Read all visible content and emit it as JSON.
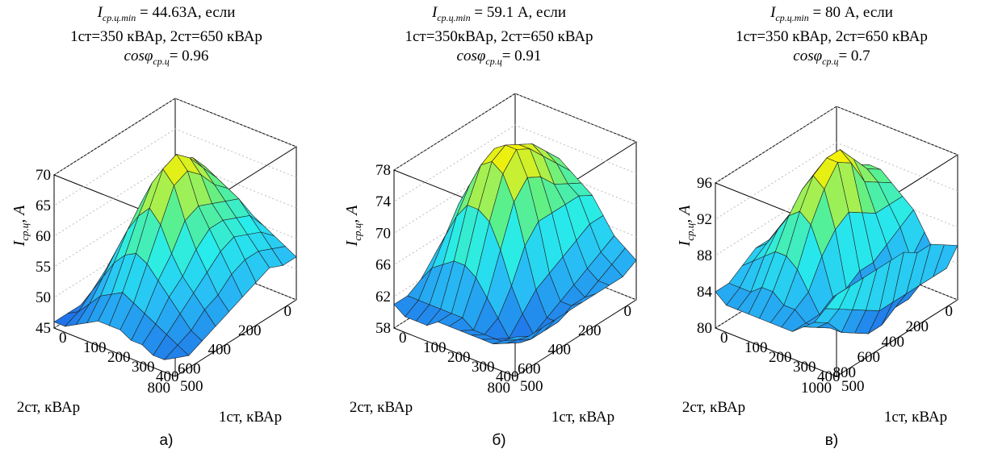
{
  "chart_data": [
    {
      "type": "surface",
      "title_lines": [
        {
          "var": "I",
          "sub": "ср.ц.min",
          "rest": " = 44.63А, если"
        },
        {
          "text": "1ст=350 кВАр, 2ст=650 кВАр"
        },
        {
          "var": "cosφ",
          "sub": "ср.ц",
          "rest": "= 0.96"
        }
      ],
      "zlabel": {
        "var": "I",
        "sub": "ср.ц",
        "rest": ", А"
      },
      "xlabel": "2ст, кВАр",
      "ylabel": "1ст, кВАр",
      "x_ticks": [
        "0",
        "200",
        "400",
        "600",
        "800"
      ],
      "y_ticks": [
        "0",
        "100",
        "200",
        "300",
        "400",
        "500"
      ],
      "z_ticks": [
        "45",
        "50",
        "55",
        "60",
        "65",
        "70"
      ],
      "xlim": [
        0,
        800
      ],
      "ylim": [
        0,
        500
      ],
      "zlim": [
        45,
        70
      ],
      "grid": true,
      "colormap": "winter-to-yellow",
      "panel_label": "а)",
      "z_values": [
        [
          52,
          54,
          56,
          57,
          58,
          58,
          57,
          56,
          55,
          54,
          53,
          52
        ],
        [
          51,
          55,
          59,
          62,
          63,
          62,
          61,
          60,
          58,
          56,
          54,
          52
        ],
        [
          50,
          55,
          60,
          64,
          66,
          65,
          63,
          61,
          59,
          57,
          55,
          53
        ],
        [
          49,
          54,
          60,
          64,
          67,
          68,
          66,
          62,
          60,
          58,
          55,
          52
        ],
        [
          48,
          53,
          59,
          64,
          67,
          70,
          68,
          63,
          60,
          57,
          54,
          51
        ],
        [
          47,
          52,
          57,
          62,
          66,
          69,
          67,
          62,
          58,
          55,
          52,
          50
        ],
        [
          47,
          51,
          55,
          59,
          62,
          64,
          62,
          58,
          55,
          53,
          51,
          49
        ],
        [
          46,
          49,
          52,
          55,
          57,
          58,
          57,
          55,
          53,
          51,
          49,
          48
        ],
        [
          46,
          47,
          49,
          51,
          52,
          53,
          52,
          51,
          50,
          49,
          48,
          47
        ],
        [
          46,
          46,
          47,
          48,
          49,
          49,
          49,
          48,
          48,
          47,
          47,
          48
        ]
      ]
    },
    {
      "type": "surface",
      "title_lines": [
        {
          "var": "I",
          "sub": "ср.ц.min",
          "rest": " = 59.1 А, если"
        },
        {
          "text": "1ст=350кВАр, 2ст=650 кВАр"
        },
        {
          "var": "cosφ",
          "sub": "ср.ц",
          "rest": "= 0.91"
        }
      ],
      "zlabel": {
        "var": "I",
        "sub": "ср.ц",
        "rest": ", А"
      },
      "xlabel": "2ст, кВАр",
      "ylabel": "1ст, кВАр",
      "x_ticks": [
        "0",
        "200",
        "400",
        "600",
        "800"
      ],
      "y_ticks": [
        "0",
        "100",
        "200",
        "300",
        "400",
        "500"
      ],
      "z_ticks": [
        "58",
        "62",
        "66",
        "70",
        "74",
        "78"
      ],
      "xlim": [
        0,
        800
      ],
      "ylim": [
        0,
        500
      ],
      "zlim": [
        58,
        78
      ],
      "grid": true,
      "colormap": "winter-to-yellow",
      "panel_label": "б)",
      "z_values": [
        [
          63,
          66,
          69,
          71,
          72,
          71,
          70,
          69,
          67,
          65,
          64,
          63
        ],
        [
          63,
          67,
          71,
          73,
          74,
          73,
          71,
          70,
          67,
          64,
          63,
          62
        ],
        [
          64,
          68,
          72,
          75,
          76,
          75,
          72,
          70,
          66,
          63,
          62,
          62
        ],
        [
          65,
          69,
          73,
          76,
          77,
          77,
          74,
          70,
          65,
          62,
          61,
          62
        ],
        [
          66,
          70,
          74,
          77,
          78,
          78,
          75,
          70,
          64,
          61,
          61,
          62
        ],
        [
          66,
          70,
          73,
          76,
          77,
          76,
          73,
          68,
          63,
          60,
          60,
          62
        ],
        [
          64,
          67,
          70,
          72,
          72,
          71,
          68,
          64,
          61,
          59,
          60,
          62
        ],
        [
          62,
          64,
          65,
          66,
          66,
          65,
          63,
          61,
          59,
          59,
          60,
          62
        ],
        [
          61,
          61,
          61,
          61,
          61,
          61,
          60,
          60,
          60,
          60,
          61,
          62
        ],
        [
          61,
          60,
          60,
          60,
          61,
          61,
          61,
          61,
          61,
          61,
          62,
          63
        ]
      ]
    },
    {
      "type": "surface",
      "title_lines": [
        {
          "var": "I",
          "sub": "ср.ц.min",
          "rest": " = 80 А, если"
        },
        {
          "text": "1ст=350 кВАр, 2ст=650 кВАр"
        },
        {
          "var": "cosφ",
          "sub": "ср.ц",
          "rest": "= 0.7"
        }
      ],
      "zlabel": {
        "var": "I",
        "sub": "ср.ц",
        "rest": ", А"
      },
      "xlabel": "2ст, кВАр",
      "ylabel": "1ст, кВАр",
      "x_ticks": [
        "0",
        "200",
        "400",
        "600",
        "800",
        "1000"
      ],
      "y_ticks": [
        "0",
        "100",
        "200",
        "300",
        "400",
        "500"
      ],
      "z_ticks": [
        "80",
        "84",
        "88",
        "92",
        "96"
      ],
      "xlim": [
        0,
        1000
      ],
      "ylim": [
        0,
        500
      ],
      "zlim": [
        80,
        96
      ],
      "grid": true,
      "colormap": "winter-to-yellow",
      "panel_label": "в)",
      "z_values": [
        [
          88,
          89,
          90,
          91,
          91,
          90,
          89,
          88,
          86,
          84,
          83,
          86
        ],
        [
          88,
          89,
          91,
          92,
          92,
          91,
          89,
          87,
          84,
          82,
          83,
          87
        ],
        [
          87,
          89,
          91,
          93,
          94,
          92,
          89,
          86,
          83,
          81,
          83,
          88
        ],
        [
          87,
          89,
          92,
          94,
          96,
          95,
          90,
          85,
          82,
          81,
          83,
          88
        ],
        [
          86,
          88,
          91,
          94,
          96,
          96,
          91,
          85,
          81,
          80,
          83,
          89
        ],
        [
          86,
          88,
          90,
          93,
          95,
          94,
          90,
          84,
          81,
          80,
          83,
          89
        ],
        [
          86,
          87,
          89,
          91,
          92,
          91,
          88,
          84,
          81,
          81,
          84,
          89
        ],
        [
          85,
          86,
          87,
          88,
          88,
          87,
          85,
          83,
          82,
          82,
          85,
          89
        ],
        [
          84,
          84,
          84,
          85,
          85,
          84,
          84,
          83,
          83,
          84,
          86,
          89
        ],
        [
          84,
          83,
          83,
          83,
          83,
          83,
          83,
          83,
          84,
          85,
          87,
          89
        ]
      ]
    }
  ]
}
